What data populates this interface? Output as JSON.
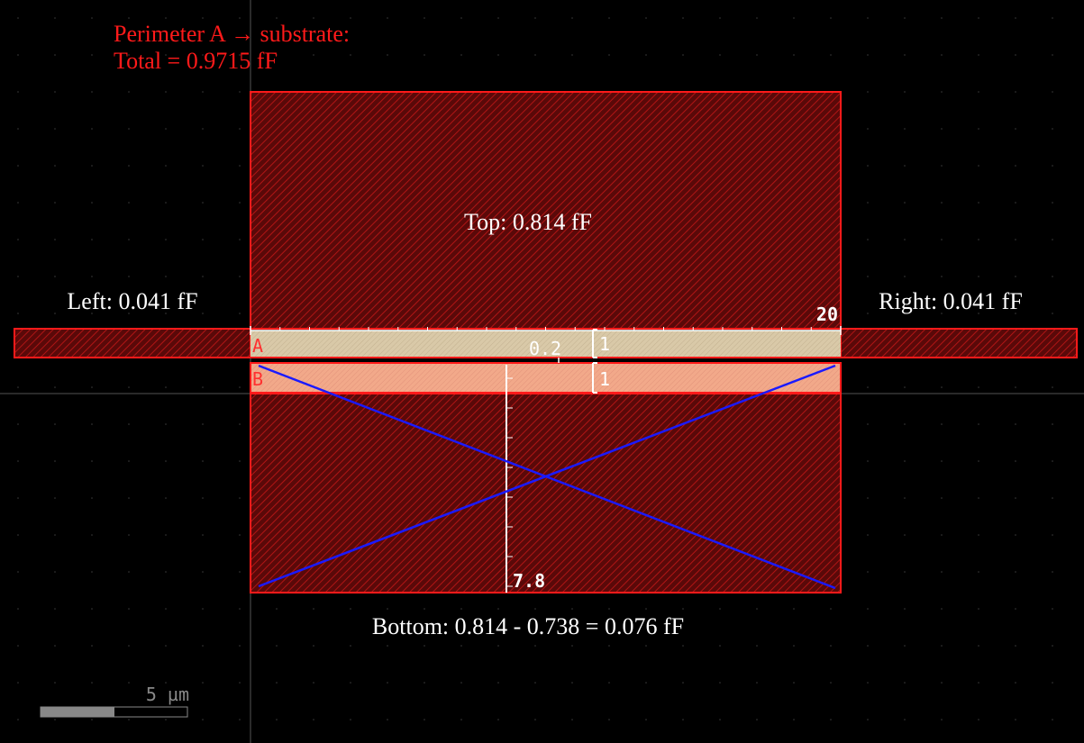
{
  "title": {
    "line1": "Perimeter A → substrate:",
    "line2": "Total = 0.9715 fF"
  },
  "labels": {
    "top": "Top: 0.814 fF",
    "left": "Left: 0.041 fF",
    "right": "Right: 0.041 fF",
    "bottom": "Bottom: 0.814 - 0.738 = 0.076 fF"
  },
  "conductors": {
    "a_name": "A",
    "b_name": "B"
  },
  "dimensions": {
    "width": "20",
    "gap": "0.2",
    "a_height": "1",
    "b_height": "1",
    "depth": "7.8"
  },
  "scale_bar": {
    "label": "5 µm"
  },
  "colors": {
    "region_stroke": "#ff1a1a",
    "region_fill": "#7a0d0d",
    "conductor_a": "#d9c9a8",
    "conductor_b": "#f2a98a",
    "cross_lines": "#1a1aff",
    "title_text": "#ff1a1a",
    "label_text": "#ffffff"
  }
}
